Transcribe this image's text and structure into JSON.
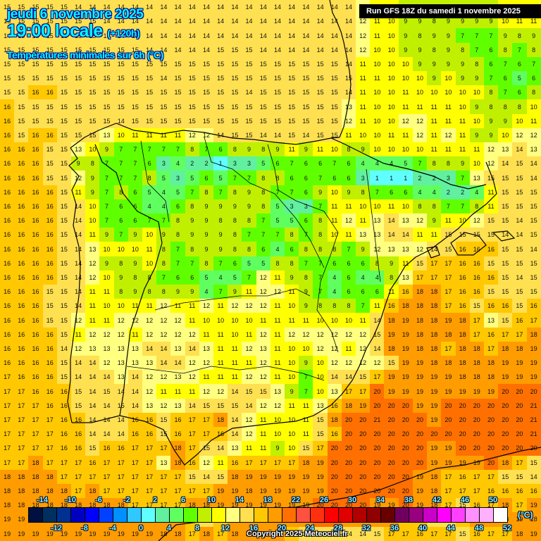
{
  "header": {
    "date": "jeudi 6 novembre 2025",
    "time": "19:00 locale",
    "lead": "(+120h)",
    "parameter": "Températures minimales sur 6h (°C)",
    "run": "Run GFS 18Z du samedi 1 novembre 2025"
  },
  "footer": {
    "copyright": "Copyright 2025 Meteociel.fr"
  },
  "legend": {
    "unit": "(°C)",
    "top_labels": [
      "-14",
      "-10",
      "-6",
      "-2",
      "2",
      "6",
      "10",
      "14",
      "18",
      "22",
      "26",
      "30",
      "34",
      "38",
      "42",
      "46",
      "50"
    ],
    "bottom_labels": [
      "-12",
      "-8",
      "-4",
      "0",
      "4",
      "8",
      "12",
      "16",
      "20",
      "24",
      "28",
      "32",
      "36",
      "40",
      "44",
      "48",
      "52"
    ],
    "colors": [
      "#001040",
      "#00305f",
      "#003090",
      "#0000c0",
      "#0000ff",
      "#0040ff",
      "#0090ff",
      "#30c8ff",
      "#60ffff",
      "#60f0a0",
      "#60ff60",
      "#60ff00",
      "#c0f000",
      "#ffff00",
      "#ffff80",
      "#ffe050",
      "#ffc800",
      "#ff9c00",
      "#ff7000",
      "#ff5040",
      "#ff3010",
      "#ff0000",
      "#e00000",
      "#b00000",
      "#900000",
      "#680000",
      "#700060",
      "#980080",
      "#c800c8",
      "#ff00ff",
      "#ff40ff",
      "#ff90ff",
      "#ffb0ff",
      "#ffffff"
    ]
  },
  "chart_data": {
    "type": "heatmap",
    "title": "Températures minimales sur 6h (°C)",
    "subtitle": "jeudi 6 novembre 2025 19:00 locale (+120h) — Run GFS 18Z du samedi 1 novembre 2025",
    "region": "Iberian Peninsula, Bay of Biscay, Balearic Islands",
    "unit": "°C",
    "scale_range": [
      -14,
      52
    ],
    "scale_step": 2,
    "grid_rows": [
      "15 15 15 15 15 14 14 14 14 14 14 14 14 14 14 14 14 14 14 14 14 14 14 14 14 12 11 10 9 9 8 9 9 9 9 10 11 11",
      "15 15 15 15 15 15 15 14 14 14 14 14 14 14 14 14 14 14 14 14 14 14 14 14 14 12 11 10 9 9 8 9 9 9 9 10 11 11",
      "14 15 15 15 15 15 15 15 14 14 14 14 14 14 14 14 14 14 14 14 14 14 14 14 14 12 11 10 9 8 9 9 7 7 7 9 8 9",
      "15 15 15 15 15 15 15 15 15 15 14 14 14 14 14 15 15 15 14 14 14 14 14 14 14 12 10 10 9 9 8 9 8 7 6 8 7 8",
      "15 15 15 15 15 15 15 15 15 15 15 15 15 15 15 15 15 15 15 15 15 15 15 15 14 11 10 10 10 9 9 9 9 8 6 7 6 7",
      "15 15 15 15 15 15 15 15 15 15 15 14 15 15 15 15 15 15 15 15 15 15 15 15 15 11 11 10 10 10 9 10 9 9 7 6 5 6",
      "15 15 16 16 15 15 15 15 15 15 15 15 15 15 15 15 15 14 15 15 15 15 15 15 14 11 10 10 11 10 10 10 10 10 8 7 6 8",
      "16 15 15 15 15 15 15 15 15 15 15 15 15 15 15 15 15 15 15 15 15 15 15 15 13 11 10 10 11 11 11 11 10 9 8 8 8 10",
      "16 15 15 15 15 15 15 15 14 15 15 15 15 15 15 15 15 15 15 15 15 15 15 15 12 11 10 10 12 12 11 11 11 10 9 9 10 11",
      "16 15 16 16 15 15 15 13 10 11 11 11 11 12 12 14 15 15 14 14 15 14 15 15 11 10 10 11 11 12 11 12 11 9 9 10 12 12",
      "16 16 16 15 15 13 10 9 7 7 7 7 7 8 7 6 8 9 8 9 11 9 11 10 8 9 10 10 10 10 11 11 11 11 12 13 14 13",
      "16 16 16 15 15 9 8 7 7 7 6 3 4 2 2 1 3 3 5 6 7 6 6 7 6 4 4 4 5 7 8 8 9 10 12 14 15 14",
      "16 16 16 15 15 12 9 7 7 7 8 5 3 5 6 5 7 7 8 8 6 6 7 6 6 3 1 1 1 2 2 3 7 13 15 15 15 14",
      "16 16 16 16 15 11 9 7 8 6 5 4 5 7 8 7 8 9 8 7 7 6 9 10 9 8 7 6 6 4 4 2 2 4 11 15 15 15",
      "16 16 16 16 15 14 10 7 6 6 4 4 6 8 9 9 9 9 8 5 3 3 7 11 11 10 10 11 10 8 8 7 7 8 11 15 15 15",
      "16 16 16 16 15 14 10 7 6 6 7 7 8 9 9 8 8 8 7 5 5 6 8 11 12 11 13 14 13 12 9 11 10 12 15 15 14 15",
      "16 16 16 16 15 14 11 9 7 9 10 9 8 9 9 9 8 7 7 7 8 7 8 10 11 13 13 14 14 11 11 15 15 15 15 14 14 15",
      "16 16 16 16 15 14 13 10 10 10 11 8 7 8 9 9 8 8 6 4 6 8 8 8 7 9 12 13 13 12 14 15 16 16 16 15 15 14",
      "16 16 16 16 15 14 12 9 8 9 10 8 7 7 8 7 6 5 5 8 8 7 7 6 6 6 8 9 11 15 17 17 16 16 15 15 15 15",
      "16 16 16 16 15 14 12 10 9 8 8 7 6 6 5 4 5 7 12 11 9 8 7 4 6 4 4 8 13 17 17 17 16 16 16 15 14 15",
      "16 16 16 15 15 14 11 11 8 9 8 8 9 9 4 7 9 11 12 12 11 9 7 4 6 6 6 11 16 18 18 17 16 16 15 15 15 15",
      "16 16 16 15 15 14 11 10 10 11 11 12 11 11 12 11 12 12 12 11 10 9 8 8 8 7 11 16 18 18 18 17 16 15 16 16 15 16",
      "16 16 16 15 15 12 11 11 12 12 12 12 12 11 10 10 10 10 11 11 11 11 10 10 10 11 14 18 19 18 18 19 18 17 13 15 16 17",
      "16 16 16 16 15 11 12 12 12 11 12 12 12 12 11 11 10 11 12 11 12 12 12 12 12 12 15 19 19 18 18 18 18 17 16 17 17 18",
      "16 16 16 16 14 12 13 13 13 13 14 14 13 14 13 11 11 12 13 11 10 10 12 12 11 12 14 18 19 18 18 17 18 18 17 18 18 19",
      "16 16 16 16 15 14 14 12 13 13 13 14 14 12 12 11 11 11 12 11 10 9 10 12 12 12 12 15 19 19 18 18 18 18 18 19 19 19",
      "17 16 16 16 15 14 14 14 13 14 12 12 13 12 11 11 11 12 12 11 10 7 10 14 14 15 17 19 19 19 19 19 18 18 18 19 19 19",
      "17 17 16 16 16 15 14 15 14 14 12 11 11 11 12 12 14 15 15 13 9 7 10 13 17 17 20 19 19 19 19 19 19 19 19 20 20 20",
      "17 17 17 16 16 15 14 14 15 14 13 12 13 14 15 15 15 14 12 12 11 11 13 16 18 19 20 20 20 19 19 20 20 20 20 20 20 21",
      "17 17 17 17 16 16 14 14 14 16 16 15 16 17 17 18 14 12 11 10 10 11 15 18 20 20 21 20 20 20 19 20 20 20 20 20 20 21",
      "17 17 17 17 16 16 14 14 14 16 16 15 16 17 17 16 14 12 11 10 10 11 15 16 20 20 20 20 20 20 20 20 20 20 20 20 20 21",
      "17 17 17 17 16 16 15 16 16 17 17 17 18 17 15 14 13 11 11 9 10 15 17 20 20 20 20 20 20 20 19 19 20 20 20 20 20 20",
      "17 17 18 17 17 17 16 17 17 17 17 13 18 16 12 11 16 17 17 17 17 18 19 20 20 20 20 20 20 20 19 19 19 19 20 18 17 15",
      "18 18 18 18 17 17 17 17 17 17 17 17 17 15 14 15 18 19 19 19 19 19 19 20 20 20 20 20 20 19 18 17 16 17 17 15 15 14",
      "18 18 18 18 18 17 18 17 17 17 17 17 17 17 17 19 19 18 19 19 19 19 19 20 20 20 20 20 20 19 18 17 17 17 16 16 16 16",
      "18 18 18 18 18 18 18 18 18 17 17 17 17 18 18 19 19 19 19 19 19 19 20 20 20 20 19 19 20 19 18 17 15 16 17 18 17 19",
      "19 19 19 19 19 19 19 19 19 19 19 18 18 17 15 17 18 19 18 19 19 19 20 20 19 18 18 18 16 17 15 15 16 18 19 18 19 18",
      "19 19 19 19 19 19 19 19 19 19 19 18 18 17 18 17 18 19 19 19 16 15 15 14 14 14 15 17 17 16 17 17 15 16 17 17 18 19"
    ]
  }
}
